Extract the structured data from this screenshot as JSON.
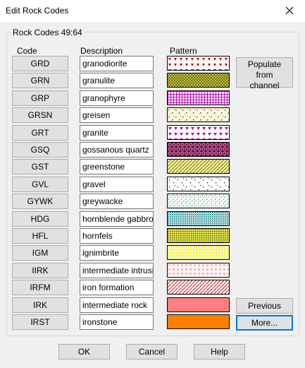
{
  "window": {
    "title": "Edit Rock Codes"
  },
  "group_title": "Rock Codes 49:64",
  "headers": {
    "code": "Code",
    "description": "Description",
    "pattern": "Pattern"
  },
  "rows": [
    {
      "code": "GRD",
      "description": "granodiorite",
      "pattern": "red-triangles-on-white"
    },
    {
      "code": "GRN",
      "description": "granulite",
      "pattern": "olive-crosshatch-on-yellow"
    },
    {
      "code": "GRP",
      "description": "granophyre",
      "pattern": "magenta-grid-on-white"
    },
    {
      "code": "GRSN",
      "description": "greisen",
      "pattern": "dark-speckles-on-cream"
    },
    {
      "code": "GRT",
      "description": "granite",
      "pattern": "magenta-triangles-on-white"
    },
    {
      "code": "GSQ",
      "description": "gossanous quartz",
      "pattern": "purple-circles-on-brown"
    },
    {
      "code": "GST",
      "description": "greenstone",
      "pattern": "olive-diagonals-on-yellow"
    },
    {
      "code": "GVL",
      "description": "gravel",
      "pattern": "black-dots-on-white"
    },
    {
      "code": "GYWK",
      "description": "greywacke",
      "pattern": "green-speckles-on-white"
    },
    {
      "code": "HDG",
      "description": "hornblende gabbro",
      "pattern": "teal-dense-on-white"
    },
    {
      "code": "HFL",
      "description": "hornfels",
      "pattern": "olive-dense-on-yellow"
    },
    {
      "code": "IGM",
      "description": "ignimbrite",
      "pattern": "yellow-speckles-on-white"
    },
    {
      "code": "IIRK",
      "description": "intermediate intrusive",
      "pattern": "pink-crosses-on-white"
    },
    {
      "code": "IRFM",
      "description": "iron formation",
      "pattern": "red-diagonals-on-white"
    },
    {
      "code": "IRK",
      "description": "intermediate rock",
      "pattern": "solid-salmon"
    },
    {
      "code": "IRST",
      "description": "ironstone",
      "pattern": "solid-orange"
    }
  ],
  "side_buttons": {
    "populate": "Populate from channel",
    "previous": "Previous",
    "more": "More..."
  },
  "footer": {
    "ok": "OK",
    "cancel": "Cancel",
    "help": "Help"
  },
  "icons": {
    "close": "close-icon"
  }
}
